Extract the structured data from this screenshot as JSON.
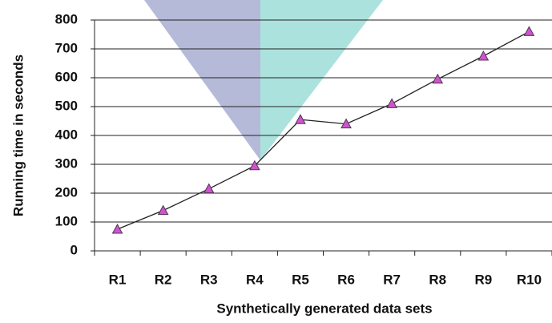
{
  "chart_data": {
    "type": "line",
    "x_label": "Synthetically generated data sets",
    "y_label": "Running time in seconds",
    "categories": [
      "R1",
      "R2",
      "R3",
      "R4",
      "R5",
      "R6",
      "R7",
      "R8",
      "R9",
      "R10"
    ],
    "series": [
      {
        "color": "#cc55cc",
        "line_color": "#222222",
        "values": [
          75,
          140,
          215,
          295,
          455,
          440,
          510,
          595,
          675,
          760
        ]
      }
    ],
    "ylim": [
      0,
      800
    ],
    "yticks": [
      0,
      100,
      200,
      300,
      400,
      500,
      600,
      700,
      800
    ],
    "grid": true
  }
}
